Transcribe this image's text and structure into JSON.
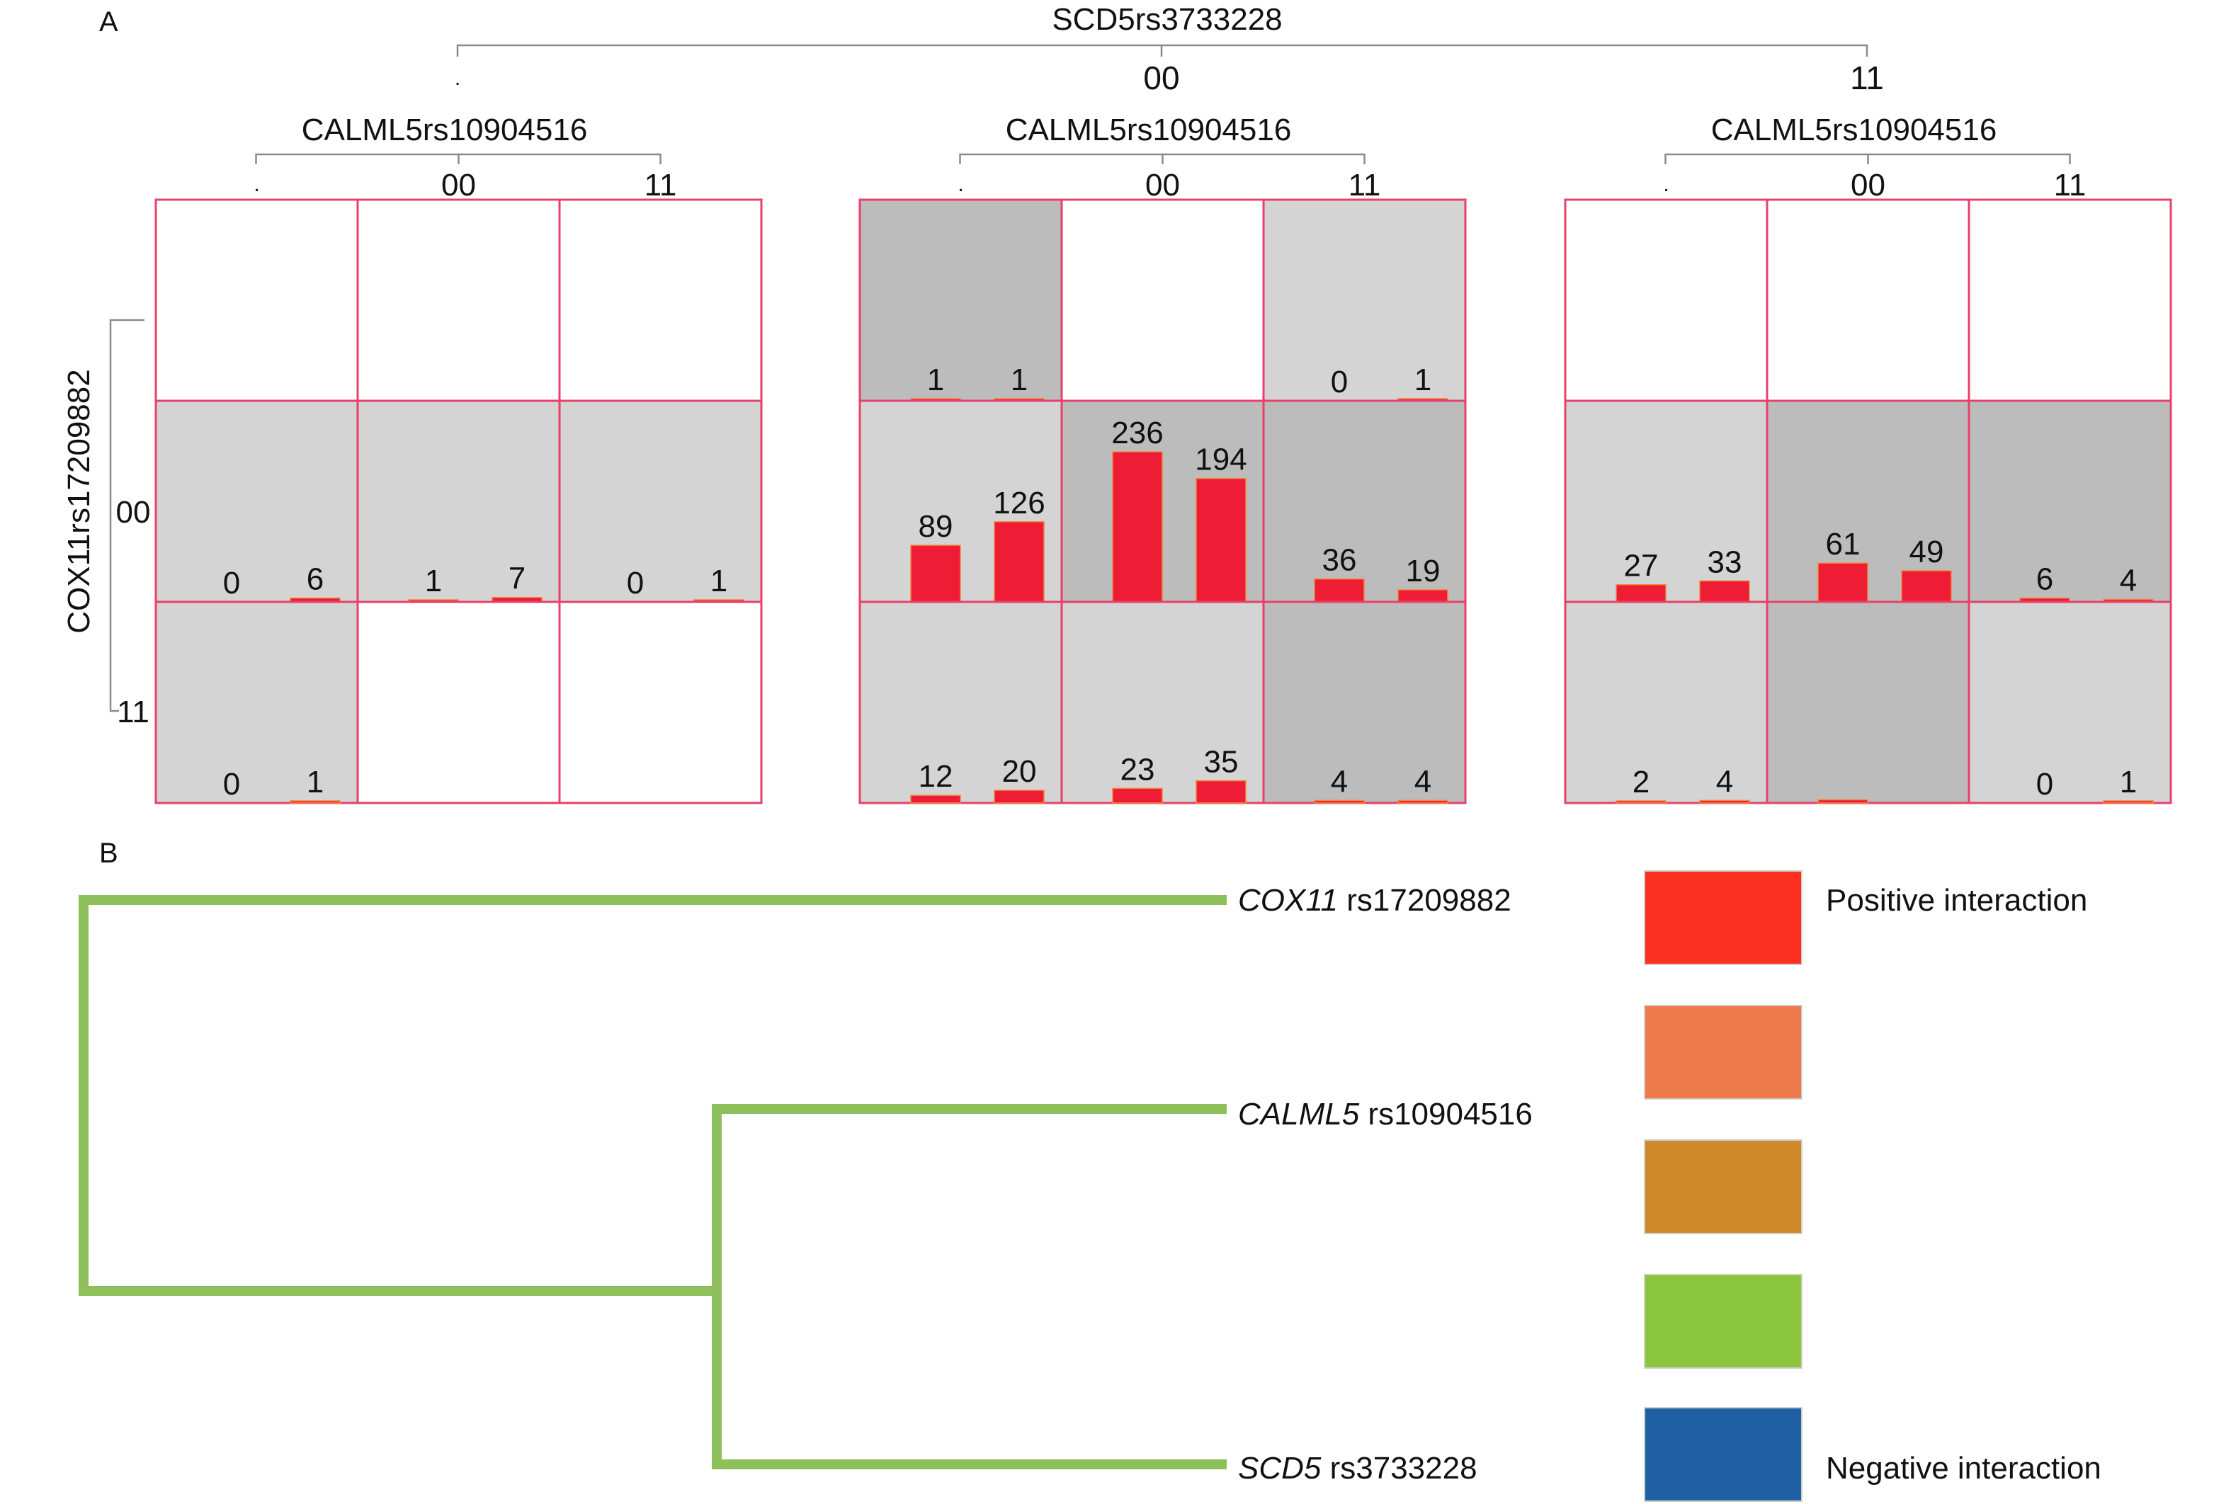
{
  "panel_labels": {
    "a": "A",
    "b": "B"
  },
  "chart_data": [
    {
      "type": "bar",
      "panel": "A",
      "top_factor": {
        "name": "SCD5rs3733228",
        "levels": [
          ".",
          "00",
          "11"
        ]
      },
      "column_factor": {
        "name": "CALML5rs10904516",
        "levels": [
          ".",
          "00",
          "11"
        ]
      },
      "row_factor": {
        "name": "COX11rs17209882",
        "levels": [
          "",
          "00",
          "11"
        ]
      },
      "ylim": [
        0,
        236
      ],
      "colors": {
        "grid_line": "#e8406a",
        "bar": "#ee1c34",
        "cell_dark": "#bcbcbc",
        "cell_light": "#d4d4d4",
        "cell_none": "#ffffff"
      },
      "cells": [
        {
          "block": 0,
          "row": 0,
          "col": 0,
          "shade": "none",
          "values": []
        },
        {
          "block": 0,
          "row": 0,
          "col": 1,
          "shade": "none",
          "values": []
        },
        {
          "block": 0,
          "row": 0,
          "col": 2,
          "shade": "none",
          "values": []
        },
        {
          "block": 0,
          "row": 1,
          "col": 0,
          "shade": "light",
          "values": [
            0,
            6
          ]
        },
        {
          "block": 0,
          "row": 1,
          "col": 1,
          "shade": "light",
          "values": [
            1,
            7
          ]
        },
        {
          "block": 0,
          "row": 1,
          "col": 2,
          "shade": "light",
          "values": [
            0,
            1
          ]
        },
        {
          "block": 0,
          "row": 2,
          "col": 0,
          "shade": "light",
          "values": [
            0,
            1
          ]
        },
        {
          "block": 0,
          "row": 2,
          "col": 1,
          "shade": "none",
          "values": []
        },
        {
          "block": 0,
          "row": 2,
          "col": 2,
          "shade": "none",
          "values": []
        },
        {
          "block": 1,
          "row": 0,
          "col": 0,
          "shade": "dark",
          "values": [
            1,
            1
          ]
        },
        {
          "block": 1,
          "row": 0,
          "col": 1,
          "shade": "none",
          "values": []
        },
        {
          "block": 1,
          "row": 0,
          "col": 2,
          "shade": "light",
          "values": [
            0,
            1
          ]
        },
        {
          "block": 1,
          "row": 1,
          "col": 0,
          "shade": "light",
          "values": [
            89,
            126
          ]
        },
        {
          "block": 1,
          "row": 1,
          "col": 1,
          "shade": "dark",
          "values": [
            236,
            194
          ]
        },
        {
          "block": 1,
          "row": 1,
          "col": 2,
          "shade": "dark",
          "values": [
            36,
            19
          ]
        },
        {
          "block": 1,
          "row": 2,
          "col": 0,
          "shade": "light",
          "values": [
            12,
            20
          ]
        },
        {
          "block": 1,
          "row": 2,
          "col": 1,
          "shade": "light",
          "values": [
            23,
            35
          ]
        },
        {
          "block": 1,
          "row": 2,
          "col": 2,
          "shade": "dark",
          "values": [
            4,
            4
          ]
        },
        {
          "block": 2,
          "row": 0,
          "col": 0,
          "shade": "none",
          "values": []
        },
        {
          "block": 2,
          "row": 0,
          "col": 1,
          "shade": "none",
          "values": []
        },
        {
          "block": 2,
          "row": 0,
          "col": 2,
          "shade": "none",
          "values": []
        },
        {
          "block": 2,
          "row": 1,
          "col": 0,
          "shade": "light",
          "values": [
            27,
            33
          ]
        },
        {
          "block": 2,
          "row": 1,
          "col": 1,
          "shade": "dark",
          "values": [
            61,
            49
          ]
        },
        {
          "block": 2,
          "row": 1,
          "col": 2,
          "shade": "dark",
          "values": [
            6,
            4
          ]
        },
        {
          "block": 2,
          "row": 2,
          "col": 0,
          "shade": "light",
          "values": [
            2,
            4
          ]
        },
        {
          "block": 2,
          "row": 2,
          "col": 1,
          "shade": "dark",
          "values": [
            5,
            0
          ],
          "hide_labels": true
        },
        {
          "block": 2,
          "row": 2,
          "col": 2,
          "shade": "light",
          "values": [
            0,
            1
          ]
        }
      ]
    },
    {
      "type": "dendrogram",
      "panel": "B",
      "leaves": [
        {
          "gene": "COX11",
          "snp": "rs17209882"
        },
        {
          "gene": "CALML5",
          "snp": "rs10904516"
        },
        {
          "gene": "SCD5",
          "snp": "rs3733228"
        }
      ],
      "merges": [
        {
          "join": [
            "CALML5",
            "SCD5"
          ]
        },
        {
          "join": [
            "COX11",
            "CALML5+SCD5"
          ]
        }
      ],
      "branch_color": "#8dbf5a",
      "legend": [
        {
          "color": "#fb3020",
          "label": "Positive interaction"
        },
        {
          "color": "#ec7a4a",
          "label": ""
        },
        {
          "color": "#d08a2a",
          "label": ""
        },
        {
          "color": "#8cc63c",
          "label": ""
        },
        {
          "color": "#1f5fa4",
          "label": "Negative interaction"
        }
      ]
    }
  ]
}
